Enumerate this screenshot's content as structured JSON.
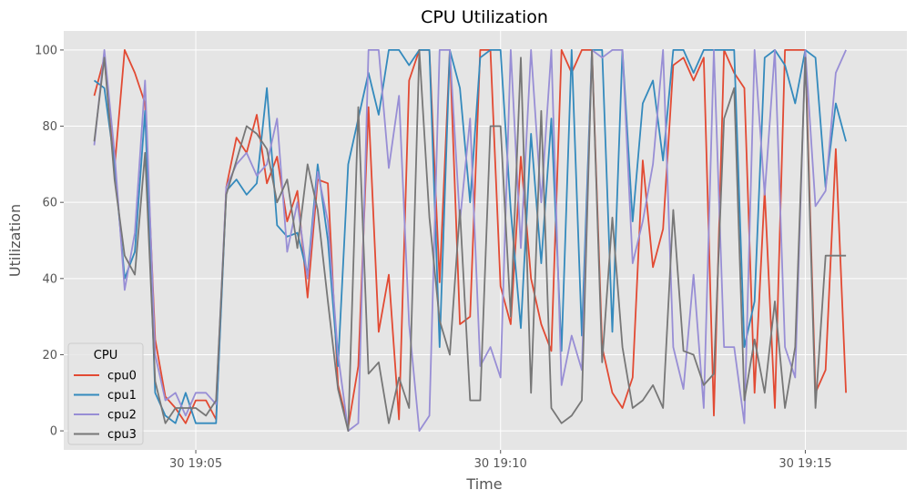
{
  "chart_data": {
    "type": "line",
    "title": "CPU Utilization",
    "xlabel": "Time",
    "ylabel": "Utilization",
    "x_start": "30 19:03:20",
    "x_step_seconds": 10,
    "xlim": [
      "30 19:02:50",
      "30 19:16:40"
    ],
    "ylim": [
      -5,
      105
    ],
    "xticks": [
      "30 19:05",
      "30 19:10",
      "30 19:15"
    ],
    "yticks": [
      0,
      20,
      40,
      60,
      80,
      100
    ],
    "grid": true,
    "legend": {
      "title": "CPU",
      "position": "lower-left"
    },
    "colors": [
      "#e24a33",
      "#348abd",
      "#988ed5",
      "#777777"
    ],
    "series": [
      {
        "name": "cpu0",
        "values": [
          88,
          98,
          69,
          100,
          94,
          86,
          24,
          9,
          6,
          2,
          8,
          8,
          3,
          64,
          77,
          73,
          83,
          65,
          72,
          55,
          63,
          35,
          66,
          65,
          12,
          1,
          17,
          85,
          26,
          41,
          3,
          92,
          100,
          100,
          39,
          100,
          28,
          30,
          100,
          100,
          38,
          28,
          72,
          40,
          28,
          21,
          100,
          94,
          100,
          100,
          22,
          10,
          6,
          14,
          71,
          43,
          53,
          96,
          98,
          92,
          98,
          4,
          100,
          94,
          90,
          10,
          63,
          6,
          100,
          100,
          100,
          10,
          16,
          74,
          10
        ]
      },
      {
        "name": "cpu1",
        "values": [
          92,
          90,
          70,
          40,
          47,
          84,
          10,
          4,
          2,
          10,
          2,
          2,
          2,
          63,
          66,
          62,
          65,
          90,
          54,
          51,
          52,
          41,
          70,
          50,
          17,
          70,
          82,
          94,
          83,
          100,
          100,
          96,
          100,
          100,
          22,
          100,
          90,
          60,
          98,
          100,
          100,
          58,
          27,
          78,
          44,
          82,
          21,
          100,
          25,
          100,
          100,
          26,
          100,
          55,
          86,
          92,
          71,
          100,
          100,
          94,
          100,
          100,
          100,
          100,
          22,
          34,
          98,
          100,
          96,
          86,
          100,
          98,
          64,
          86,
          76
        ]
      },
      {
        "name": "cpu2",
        "values": [
          75,
          100,
          73,
          37,
          52,
          92,
          20,
          8,
          10,
          4,
          10,
          10,
          7,
          64,
          70,
          73,
          67,
          70,
          82,
          47,
          60,
          40,
          68,
          55,
          20,
          0,
          2,
          100,
          100,
          69,
          88,
          28,
          0,
          4,
          100,
          100,
          55,
          82,
          17,
          22,
          14,
          100,
          48,
          100,
          60,
          100,
          12,
          25,
          16,
          100,
          98,
          100,
          100,
          44,
          55,
          70,
          100,
          22,
          11,
          41,
          6,
          100,
          22,
          22,
          2,
          100,
          62,
          100,
          22,
          14,
          100,
          59,
          63,
          94,
          100
        ]
      },
      {
        "name": "cpu3",
        "values": [
          76,
          98,
          66,
          46,
          41,
          73,
          13,
          2,
          6,
          6,
          6,
          4,
          8,
          62,
          71,
          80,
          78,
          74,
          60,
          66,
          48,
          70,
          58,
          34,
          11,
          0,
          85,
          15,
          18,
          2,
          14,
          6,
          100,
          56,
          29,
          20,
          58,
          8,
          8,
          80,
          80,
          30,
          98,
          10,
          84,
          6,
          2,
          4,
          8,
          100,
          18,
          56,
          22,
          6,
          8,
          12,
          6,
          58,
          21,
          20,
          12,
          15,
          82,
          90,
          8,
          24,
          10,
          34,
          6,
          22,
          98,
          6,
          46,
          46,
          46
        ]
      }
    ]
  }
}
